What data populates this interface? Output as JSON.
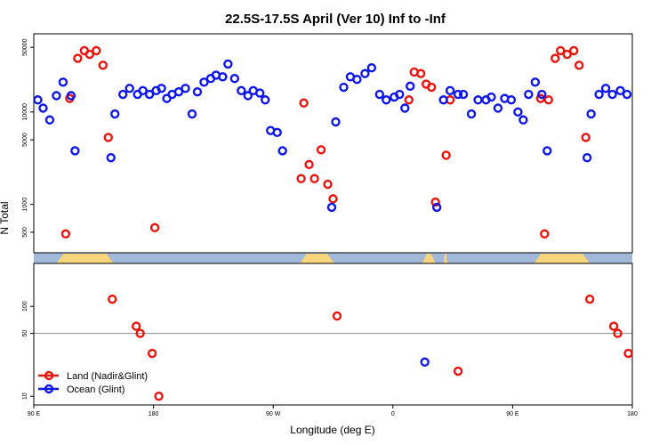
{
  "chart_data": {
    "type": "scatter",
    "title": "22.5S-17.5S April (Ver 10)   Inf to -Inf",
    "xlabel": "Longitude (deg E)",
    "ylabel": "N Total",
    "x_ticks": [
      {
        "value": 90,
        "label": "90 E"
      },
      {
        "value": 180,
        "label": "180"
      },
      {
        "value": 270,
        "label": "90 W"
      },
      {
        "value": 360,
        "label": "0"
      },
      {
        "value": 450,
        "label": "90 E"
      },
      {
        "value": 540,
        "label": "180"
      }
    ],
    "xlim": [
      90,
      540
    ],
    "y_scale": "log",
    "upper_panel": {
      "ylim": [
        300,
        70000
      ],
      "ticks": [
        500,
        1000,
        5000,
        10000,
        50000
      ]
    },
    "lower_panel": {
      "ylim": [
        8,
        300
      ],
      "ticks": [
        10,
        50,
        100
      ],
      "reference_line": 50
    },
    "legend_position": "bottom-left",
    "colors": {
      "land": "#e8140e",
      "ocean": "#0f17e6",
      "landmask": "#f7d57c",
      "oceanmask": "#a2b8d8",
      "refline": "#888888"
    },
    "series": [
      {
        "name": "Land (Nadir&Glint)",
        "color": "#e8140e",
        "points": [
          [
            114,
            480
          ],
          [
            117,
            14000
          ],
          [
            123,
            38000
          ],
          [
            128,
            46000
          ],
          [
            132,
            42000
          ],
          [
            137,
            46000
          ],
          [
            142,
            32000
          ],
          [
            146,
            5300
          ],
          [
            149,
            120
          ],
          [
            167,
            60
          ],
          [
            170,
            50
          ],
          [
            179,
            30
          ],
          [
            181,
            560
          ],
          [
            184,
            10
          ],
          [
            291,
            1900
          ],
          [
            293,
            12500
          ],
          [
            297,
            2700
          ],
          [
            301,
            1900
          ],
          [
            306,
            3900
          ],
          [
            311,
            1650
          ],
          [
            315,
            1150
          ],
          [
            318,
            78
          ],
          [
            372,
            13500
          ],
          [
            376,
            27000
          ],
          [
            381,
            26000
          ],
          [
            385,
            20000
          ],
          [
            389,
            18500
          ],
          [
            392,
            1060
          ],
          [
            400,
            3400
          ],
          [
            403,
            13500
          ],
          [
            409,
            19
          ],
          [
            471,
            14000
          ],
          [
            474,
            480
          ],
          [
            477,
            13500
          ],
          [
            482,
            38000
          ],
          [
            486,
            46000
          ],
          [
            491,
            42000
          ],
          [
            496,
            46000
          ],
          [
            500,
            32000
          ],
          [
            505,
            5300
          ],
          [
            508,
            120
          ],
          [
            526,
            60
          ],
          [
            529,
            50
          ],
          [
            537,
            30
          ]
        ]
      },
      {
        "name": "Ocean (Glint)",
        "color": "#0f17e6",
        "points": [
          [
            93,
            13500
          ],
          [
            97,
            11000
          ],
          [
            102,
            8200
          ],
          [
            107,
            15000
          ],
          [
            112,
            21000
          ],
          [
            118,
            15000
          ],
          [
            121,
            3800
          ],
          [
            148,
            3200
          ],
          [
            151,
            9500
          ],
          [
            157,
            15500
          ],
          [
            162,
            18000
          ],
          [
            168,
            15500
          ],
          [
            172,
            17000
          ],
          [
            177,
            15500
          ],
          [
            182,
            17000
          ],
          [
            186,
            18000
          ],
          [
            190,
            14000
          ],
          [
            194,
            15500
          ],
          [
            199,
            16500
          ],
          [
            204,
            18000
          ],
          [
            209,
            9500
          ],
          [
            213,
            16500
          ],
          [
            218,
            21000
          ],
          [
            223,
            23000
          ],
          [
            227,
            25000
          ],
          [
            232,
            24000
          ],
          [
            236,
            33000
          ],
          [
            241,
            23000
          ],
          [
            246,
            17000
          ],
          [
            251,
            15000
          ],
          [
            255,
            17000
          ],
          [
            260,
            16000
          ],
          [
            264,
            13500
          ],
          [
            268,
            6300
          ],
          [
            273,
            6000
          ],
          [
            277,
            3800
          ],
          [
            314,
            930
          ],
          [
            317,
            7800
          ],
          [
            323,
            18500
          ],
          [
            328,
            24000
          ],
          [
            333,
            22500
          ],
          [
            339,
            26000
          ],
          [
            344,
            30000
          ],
          [
            350,
            15500
          ],
          [
            355,
            13500
          ],
          [
            361,
            14500
          ],
          [
            365,
            15500
          ],
          [
            369,
            11000
          ],
          [
            373,
            19000
          ],
          [
            384,
            24
          ],
          [
            393,
            930
          ],
          [
            398,
            13500
          ],
          [
            403,
            17000
          ],
          [
            409,
            15500
          ],
          [
            413,
            15500
          ],
          [
            419,
            9500
          ],
          [
            424,
            13500
          ],
          [
            430,
            13500
          ],
          [
            434,
            14500
          ],
          [
            439,
            11000
          ],
          [
            444,
            14000
          ],
          [
            449,
            13500
          ],
          [
            454,
            10000
          ],
          [
            458,
            8200
          ],
          [
            462,
            15500
          ],
          [
            467,
            21000
          ],
          [
            472,
            15500
          ],
          [
            476,
            3800
          ],
          [
            506,
            3200
          ],
          [
            509,
            9500
          ],
          [
            515,
            15500
          ],
          [
            520,
            18000
          ],
          [
            525,
            15500
          ],
          [
            531,
            17000
          ],
          [
            536,
            15500
          ]
        ]
      }
    ]
  }
}
